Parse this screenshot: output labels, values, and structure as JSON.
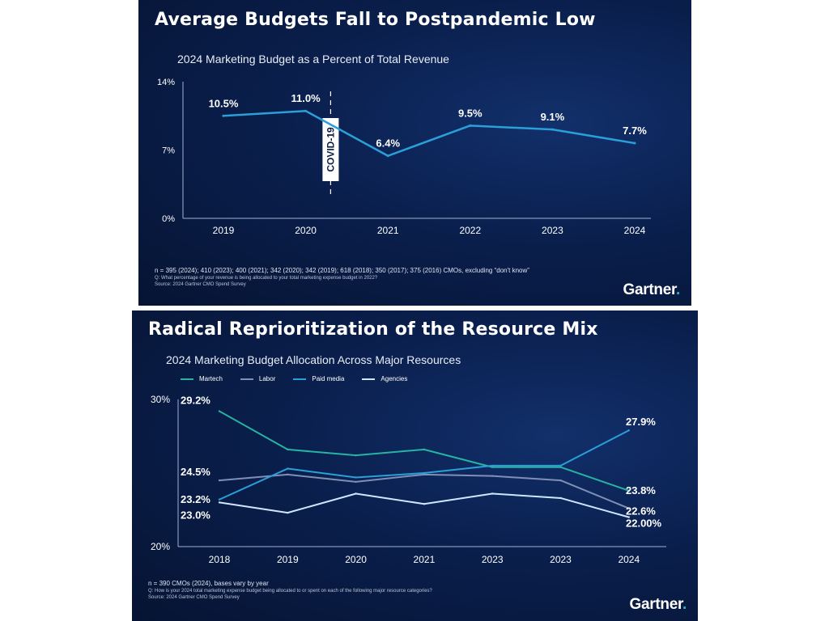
{
  "panel1": {
    "heading": "Average Budgets Fall to Postpandemic Low",
    "subtitle": "2024 Marketing Budget as a Percent of Total Revenue",
    "note1": "n = 395 (2024); 410 (2023); 400 (2021); 342 (2020); 342 (2019); 618 (2018); 350 (2017); 375 (2016) CMOs, excluding “don't know”",
    "note2": "Q: What percentage of your revenue is being allocated to your total marketing expense budget in 2022?",
    "note3": "Source: 2024 Gartner CMO Spend Survey",
    "logo": "Gartner",
    "logo_dot": "."
  },
  "panel2": {
    "heading": "Radical Reprioritization of the Resource Mix",
    "subtitle": "2024 Marketing Budget Allocation Across Major Resources",
    "note1": "n = 390 CMOs (2024), bases vary by year",
    "note2": "Q: How is your 2024 total marketing expense budget being allocated to or spent on each of the following major resource categories?",
    "note3": "Source: 2024 Gartner CMO Spend Survey",
    "logo": "Gartner",
    "logo_dot": "."
  },
  "chart_data": [
    {
      "type": "line",
      "title": "2024 Marketing Budget as a Percent of Total Revenue",
      "categories": [
        "2019",
        "2020",
        "2021",
        "2022",
        "2023",
        "2024"
      ],
      "values": [
        10.5,
        11.0,
        6.4,
        9.5,
        9.1,
        7.7
      ],
      "data_labels": [
        "10.5%",
        "11.0%",
        "6.4%",
        "9.5%",
        "9.1%",
        "7.7%"
      ],
      "ylim": [
        0,
        14
      ],
      "yticks": [
        0,
        7,
        14
      ],
      "ytick_labels": [
        "0%",
        "7%",
        "14%"
      ],
      "annotation": "COVID-19",
      "color": "#2a9fd8"
    },
    {
      "type": "line",
      "title": "2024 Marketing Budget Allocation Across Major Resources",
      "categories": [
        "2018",
        "2019",
        "2020",
        "2021",
        "2023",
        "2023",
        "2024"
      ],
      "ylim": [
        20,
        30
      ],
      "yticks": [
        20,
        30
      ],
      "ytick_labels": [
        "20%",
        "30%"
      ],
      "legend_position": "top-left",
      "series": [
        {
          "name": "Martech",
          "color": "#27b3a1",
          "values": [
            29.2,
            26.6,
            26.2,
            26.6,
            25.4,
            25.4,
            23.8
          ],
          "labels": {
            "0": "29.2%",
            "6": "23.8%"
          }
        },
        {
          "name": "Labor",
          "color": "#7f8fb5",
          "values": [
            24.5,
            24.9,
            24.4,
            24.9,
            24.8,
            24.5,
            22.6
          ],
          "labels": {
            "0": "24.5%",
            "6": "22.6%"
          }
        },
        {
          "name": "Paid media",
          "color": "#2a9fd8",
          "values": [
            23.2,
            25.3,
            24.7,
            25.0,
            25.5,
            25.5,
            27.9
          ],
          "labels": {
            "0": "23.2%",
            "6": "27.9%"
          }
        },
        {
          "name": "Agencies",
          "color": "#cfe6ff",
          "values": [
            23.0,
            22.3,
            23.6,
            22.9,
            23.6,
            23.3,
            22.0
          ],
          "labels": {
            "0": "23.0%",
            "6": "22.00%"
          }
        }
      ]
    }
  ]
}
